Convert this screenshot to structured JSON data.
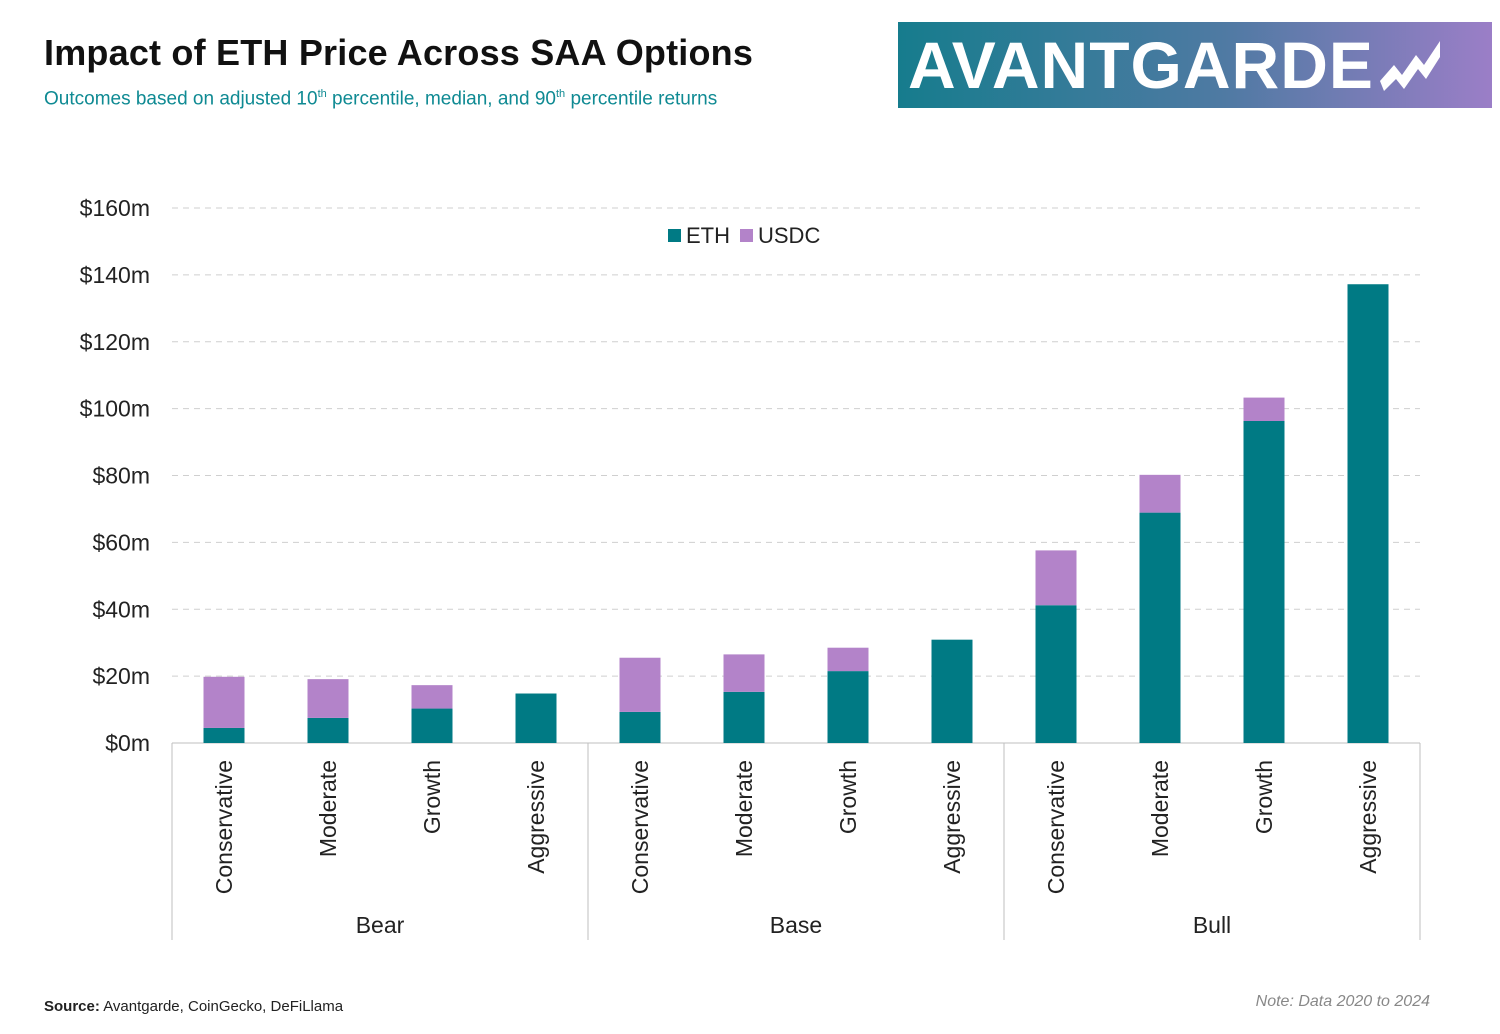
{
  "header": {
    "title": "Impact of ETH Price Across SAA Options",
    "subtitle_parts": [
      "Outcomes based on adjusted 10",
      "th",
      " percentile, median, and 90",
      "th",
      " percentile returns"
    ]
  },
  "logo": {
    "text": "AVANTGARDE"
  },
  "footer": {
    "source_label": "Source:",
    "source_text": " Avantgarde, CoinGecko, DeFiLlama",
    "note": "Note: Data 2020 to 2024"
  },
  "colors": {
    "eth": "#007a84",
    "usdc": "#b383c9",
    "accent": "#0f8a93",
    "grid": "#cfcfcf"
  },
  "chart_data": {
    "type": "bar",
    "stacked": true,
    "title": "Impact of ETH Price Across SAA Options",
    "xlabel": "",
    "ylabel": "",
    "ylim": [
      0,
      160
    ],
    "yticks": [
      0,
      20,
      40,
      60,
      80,
      100,
      120,
      140,
      160
    ],
    "ytick_labels": [
      "$0m",
      "$20m",
      "$40m",
      "$60m",
      "$80m",
      "$100m",
      "$120m",
      "$140m",
      "$160m"
    ],
    "grid": true,
    "legend_position": "top-center",
    "groups": [
      "Bear",
      "Base",
      "Bull"
    ],
    "categories": [
      "Conservative",
      "Moderate",
      "Growth",
      "Aggressive",
      "Conservative",
      "Moderate",
      "Growth",
      "Aggressive",
      "Conservative",
      "Moderate",
      "Growth",
      "Aggressive"
    ],
    "series": [
      {
        "name": "ETH",
        "values": [
          4.5,
          7.5,
          10.3,
          14.8,
          9.3,
          15.3,
          21.5,
          30.9,
          41.2,
          68.9,
          96.3,
          137.2
        ]
      },
      {
        "name": "USDC",
        "values": [
          15.3,
          11.6,
          7.0,
          0,
          16.2,
          11.2,
          7.0,
          0,
          16.4,
          11.3,
          7.0,
          0
        ]
      }
    ]
  }
}
